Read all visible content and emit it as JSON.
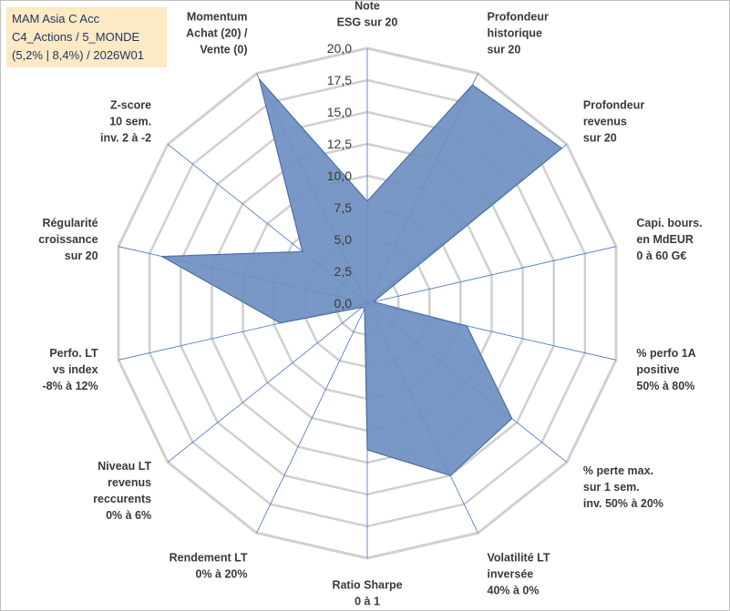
{
  "title_box": {
    "line1": "MAM Asia C Acc",
    "line2": "C4_Actions / 5_MONDE",
    "line3": "(5,2% | 8,4%) / 2026W01"
  },
  "chart_data": {
    "type": "radar",
    "ylim": [
      0,
      20
    ],
    "ticks": [
      "0,0",
      "2,5",
      "5,0",
      "7,5",
      "10,0",
      "12,5",
      "15,0",
      "17,5",
      "20,0"
    ],
    "axes": [
      {
        "label": [
          "Note",
          "ESG sur 20"
        ],
        "value": 8.0
      },
      {
        "label": [
          "Profondeur",
          "historique",
          "sur 20"
        ],
        "value": 19.0
      },
      {
        "label": [
          "Profondeur",
          "revenus",
          "sur 20"
        ],
        "value": 19.5
      },
      {
        "label": [
          "Capi. bours.",
          "en MdEUR",
          "0 à 60 G€"
        ],
        "value": 0.5
      },
      {
        "label": [
          "% perfo 1A",
          "positive",
          "50% à 80%"
        ],
        "value": 8.0
      },
      {
        "label": [
          "% perte max.",
          "sur 1 sem.",
          "inv. 50% à 20%"
        ],
        "value": 14.5
      },
      {
        "label": [
          "Volatilité LT",
          "inversée",
          "40% à 0%"
        ],
        "value": 15.0
      },
      {
        "label": [
          "Ratio Sharpe",
          "0 à 1"
        ],
        "value": 11.5
      },
      {
        "label": [
          "Rendement LT",
          "0% à 20%"
        ],
        "value": 0.5
      },
      {
        "label": [
          "Niveau LT",
          "revenus",
          "reccurents",
          "0% à 6%"
        ],
        "value": 0.5
      },
      {
        "label": [
          "Perfo. LT",
          "vs index",
          "-8% à 12%"
        ],
        "value": 7.0
      },
      {
        "label": [
          "Régularité",
          "croissance",
          "sur 20"
        ],
        "value": 16.5
      },
      {
        "label": [
          "Z-score",
          "10 sem.",
          "inv. 2 à -2"
        ],
        "value": 6.5
      },
      {
        "label": [
          "Momentum",
          "Achat (20) /",
          "Vente (0)"
        ],
        "value": 19.5
      }
    ],
    "colors": {
      "fill": "#6e8fc0",
      "stroke": "#4a6fa5",
      "grid": "#d0d0d0",
      "spoke": "#4472c4"
    }
  }
}
